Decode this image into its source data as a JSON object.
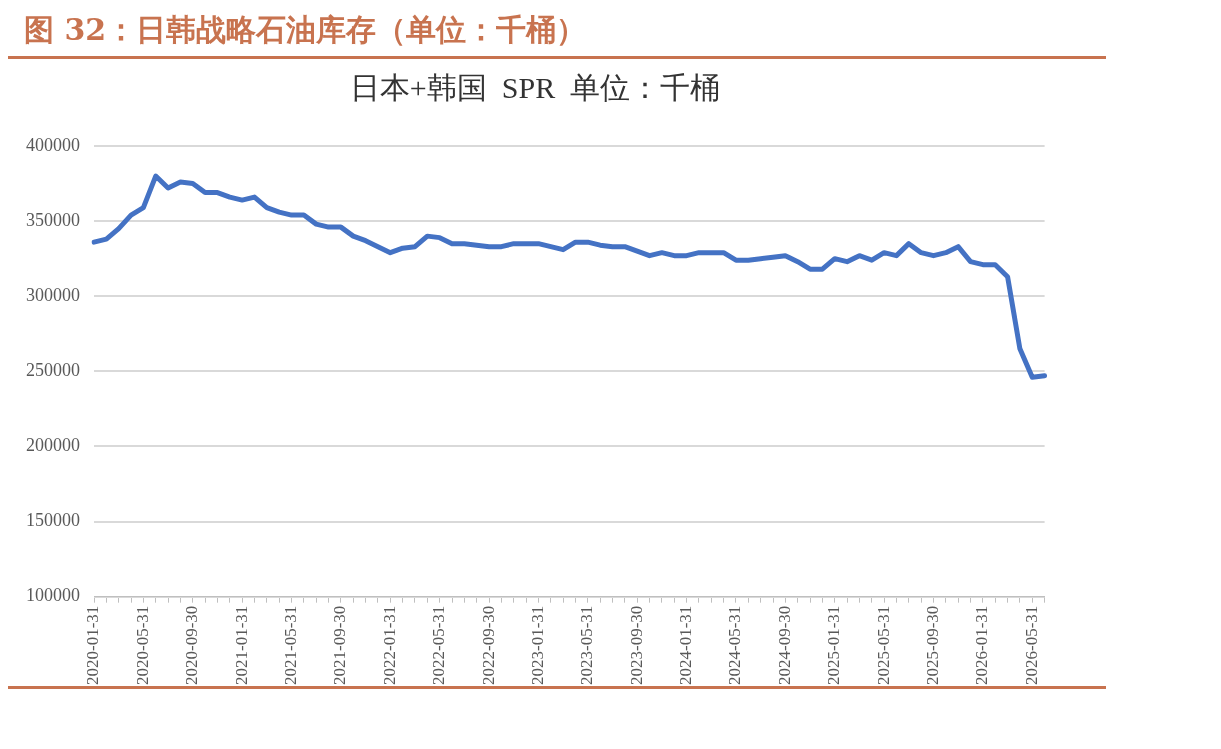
{
  "chart_data": {
    "type": "line",
    "title": "图 32：日韩战略石油库存（单位：千桶）",
    "subtitle": "日本+韩国  SPR  单位：千桶",
    "categories": [
      "2020-01-31",
      null,
      null,
      null,
      "2020-05-31",
      null,
      null,
      null,
      "2020-09-30",
      null,
      null,
      null,
      "2021-01-31",
      null,
      null,
      null,
      "2021-05-31",
      null,
      null,
      null,
      "2021-09-30",
      null,
      null,
      null,
      "2022-01-31",
      null,
      null,
      null,
      "2022-05-31",
      null,
      null,
      null,
      "2022-09-30",
      null,
      null,
      null,
      "2023-01-31",
      null,
      null,
      null,
      "2023-05-31",
      null,
      null,
      null,
      "2023-09-30",
      null,
      null,
      null,
      "2024-01-31",
      null,
      null,
      null,
      "2024-05-31",
      null,
      null,
      null,
      "2024-09-30",
      null,
      null,
      null,
      "2025-01-31",
      null,
      null,
      null,
      "2025-05-31",
      null,
      null,
      null,
      "2025-09-30",
      null,
      null,
      null,
      "2026-01-31",
      null,
      null,
      null,
      "2026-05-31",
      null
    ],
    "series": [
      {
        "color": "#4472c4",
        "values": [
          336000,
          338000,
          345000,
          354000,
          359000,
          380000,
          372000,
          376000,
          375000,
          369000,
          369000,
          366000,
          364000,
          366000,
          359000,
          356000,
          354000,
          354000,
          348000,
          346000,
          346000,
          340000,
          337000,
          333000,
          329000,
          332000,
          333000,
          340000,
          339000,
          335000,
          335000,
          334000,
          333000,
          333000,
          335000,
          335000,
          335000,
          333000,
          331000,
          336000,
          336000,
          334000,
          333000,
          333000,
          330000,
          327000,
          329000,
          327000,
          327000,
          329000,
          329000,
          329000,
          324000,
          324000,
          325000,
          326000,
          327000,
          323000,
          318000,
          318000,
          325000,
          323000,
          327000,
          324000,
          329000,
          327000,
          335000,
          329000,
          327000,
          329000,
          333000,
          323000,
          321000,
          321000,
          313000,
          265000,
          246000,
          247000
        ]
      }
    ],
    "ylim": [
      100000,
      400000
    ],
    "yticks": [
      100000,
      150000,
      200000,
      250000,
      300000,
      350000,
      400000
    ],
    "grid": "y",
    "legend": false,
    "marker": "none",
    "line_style": "solid"
  }
}
